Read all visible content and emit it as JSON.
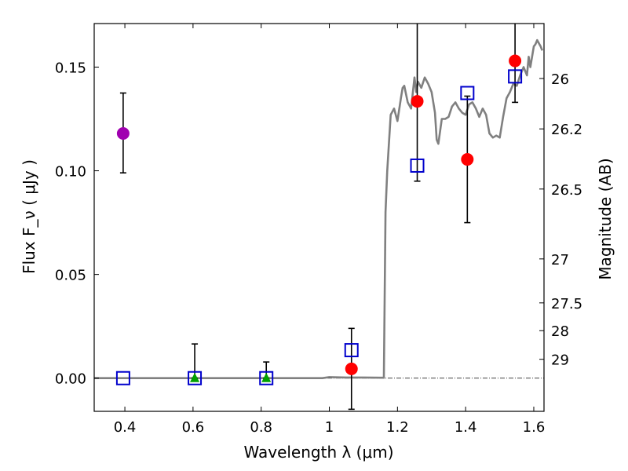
{
  "chart_data": {
    "type": "scatter",
    "title": "",
    "xlabel": "Wavelength  λ (μm)",
    "ylabel": "Flux  F_ν  ( μJy )",
    "ylabel_right": "Magnitude (AB)",
    "xlim": [
      0.31,
      1.63
    ],
    "ylim": [
      -0.016,
      0.171
    ],
    "x_ticks": [
      0.4,
      0.6,
      0.8,
      1.0,
      1.2,
      1.4,
      1.6
    ],
    "x_tick_labels": [
      "0.4",
      "0.6",
      "0.8",
      "1",
      "1.2",
      "1.4",
      "1.6"
    ],
    "y_ticks": [
      0.0,
      0.05,
      0.1,
      0.15
    ],
    "y_tick_labels": [
      "0.00",
      "0.05",
      "0.10",
      "0.15"
    ],
    "right_axis_ticks": [
      {
        "label": "26",
        "flux": 0.1445
      },
      {
        "label": "26.2",
        "flux": 0.1202
      },
      {
        "label": "26.5",
        "flux": 0.0912
      },
      {
        "label": "27",
        "flux": 0.0575
      },
      {
        "label": "27.5",
        "flux": 0.0363
      },
      {
        "label": "28",
        "flux": 0.0229
      },
      {
        "label": "29",
        "flux": 0.0091
      }
    ],
    "series": [
      {
        "name": "model SED",
        "type": "line",
        "color": "#808080",
        "x": [
          0.31,
          0.5,
          0.98,
          1.0,
          1.05,
          1.1,
          1.16,
          1.165,
          1.17,
          1.18,
          1.19,
          1.2,
          1.21,
          1.215,
          1.22,
          1.23,
          1.24,
          1.25,
          1.255,
          1.26,
          1.27,
          1.28,
          1.29,
          1.3,
          1.31,
          1.315,
          1.32,
          1.33,
          1.34,
          1.35,
          1.36,
          1.37,
          1.38,
          1.39,
          1.4,
          1.41,
          1.42,
          1.43,
          1.44,
          1.45,
          1.46,
          1.47,
          1.48,
          1.49,
          1.5,
          1.51,
          1.52,
          1.53,
          1.54,
          1.55,
          1.56,
          1.57,
          1.58,
          1.585,
          1.59,
          1.6,
          1.605,
          1.61,
          1.62,
          1.625
        ],
        "y": [
          0.0,
          0.0,
          0.0,
          0.0005,
          0.0003,
          0.0003,
          0.0002,
          0.08,
          0.1,
          0.127,
          0.13,
          0.124,
          0.135,
          0.14,
          0.141,
          0.133,
          0.13,
          0.145,
          0.138,
          0.143,
          0.14,
          0.145,
          0.142,
          0.138,
          0.128,
          0.115,
          0.113,
          0.125,
          0.125,
          0.126,
          0.131,
          0.133,
          0.13,
          0.128,
          0.127,
          0.132,
          0.133,
          0.13,
          0.126,
          0.13,
          0.127,
          0.118,
          0.116,
          0.117,
          0.116,
          0.126,
          0.135,
          0.138,
          0.142,
          0.141,
          0.146,
          0.15,
          0.146,
          0.155,
          0.15,
          0.16,
          0.161,
          0.163,
          0.16,
          0.158
        ]
      },
      {
        "name": "points (red circles)",
        "type": "scatter",
        "marker": "circle",
        "color": "#ff0000",
        "points": [
          {
            "x": 1.065,
            "y": 0.0045
          },
          {
            "x": 1.258,
            "y": 0.1335
          },
          {
            "x": 1.405,
            "y": 0.1055
          },
          {
            "x": 1.545,
            "y": 0.153
          }
        ]
      },
      {
        "name": "point (purple circle)",
        "type": "scatter",
        "marker": "circle",
        "color": "#a000b0",
        "points": [
          {
            "x": 0.395,
            "y": 0.118
          }
        ]
      },
      {
        "name": "points (green triangles)",
        "type": "scatter",
        "marker": "triangle",
        "color": "#00a000",
        "points": [
          {
            "x": 0.605,
            "y": 0.0
          },
          {
            "x": 0.815,
            "y": 0.0
          }
        ]
      },
      {
        "name": "model photometry (blue squares)",
        "type": "scatter",
        "marker": "square-open",
        "color": "#0000cc",
        "points": [
          {
            "x": 0.395,
            "y": 0.0
          },
          {
            "x": 0.605,
            "y": 0.0
          },
          {
            "x": 0.815,
            "y": 0.0
          },
          {
            "x": 1.065,
            "y": 0.0135
          },
          {
            "x": 1.258,
            "y": 0.1025
          },
          {
            "x": 1.405,
            "y": 0.1375
          },
          {
            "x": 1.545,
            "y": 0.1455
          }
        ]
      }
    ],
    "error_bars": [
      {
        "x": 0.395,
        "low": 0.099,
        "high": 0.1375
      },
      {
        "x": 0.605,
        "low": 0.0,
        "high": 0.0165
      },
      {
        "x": 0.815,
        "low": 0.0,
        "high": 0.0078
      },
      {
        "x": 1.065,
        "low": -0.015,
        "high": 0.024
      },
      {
        "x": 1.258,
        "low": 0.095,
        "high": 0.171
      },
      {
        "x": 1.405,
        "low": 0.075,
        "high": 0.136
      },
      {
        "x": 1.545,
        "low": 0.133,
        "high": 0.171
      }
    ],
    "zero_line": 0.0,
    "grid": false
  }
}
